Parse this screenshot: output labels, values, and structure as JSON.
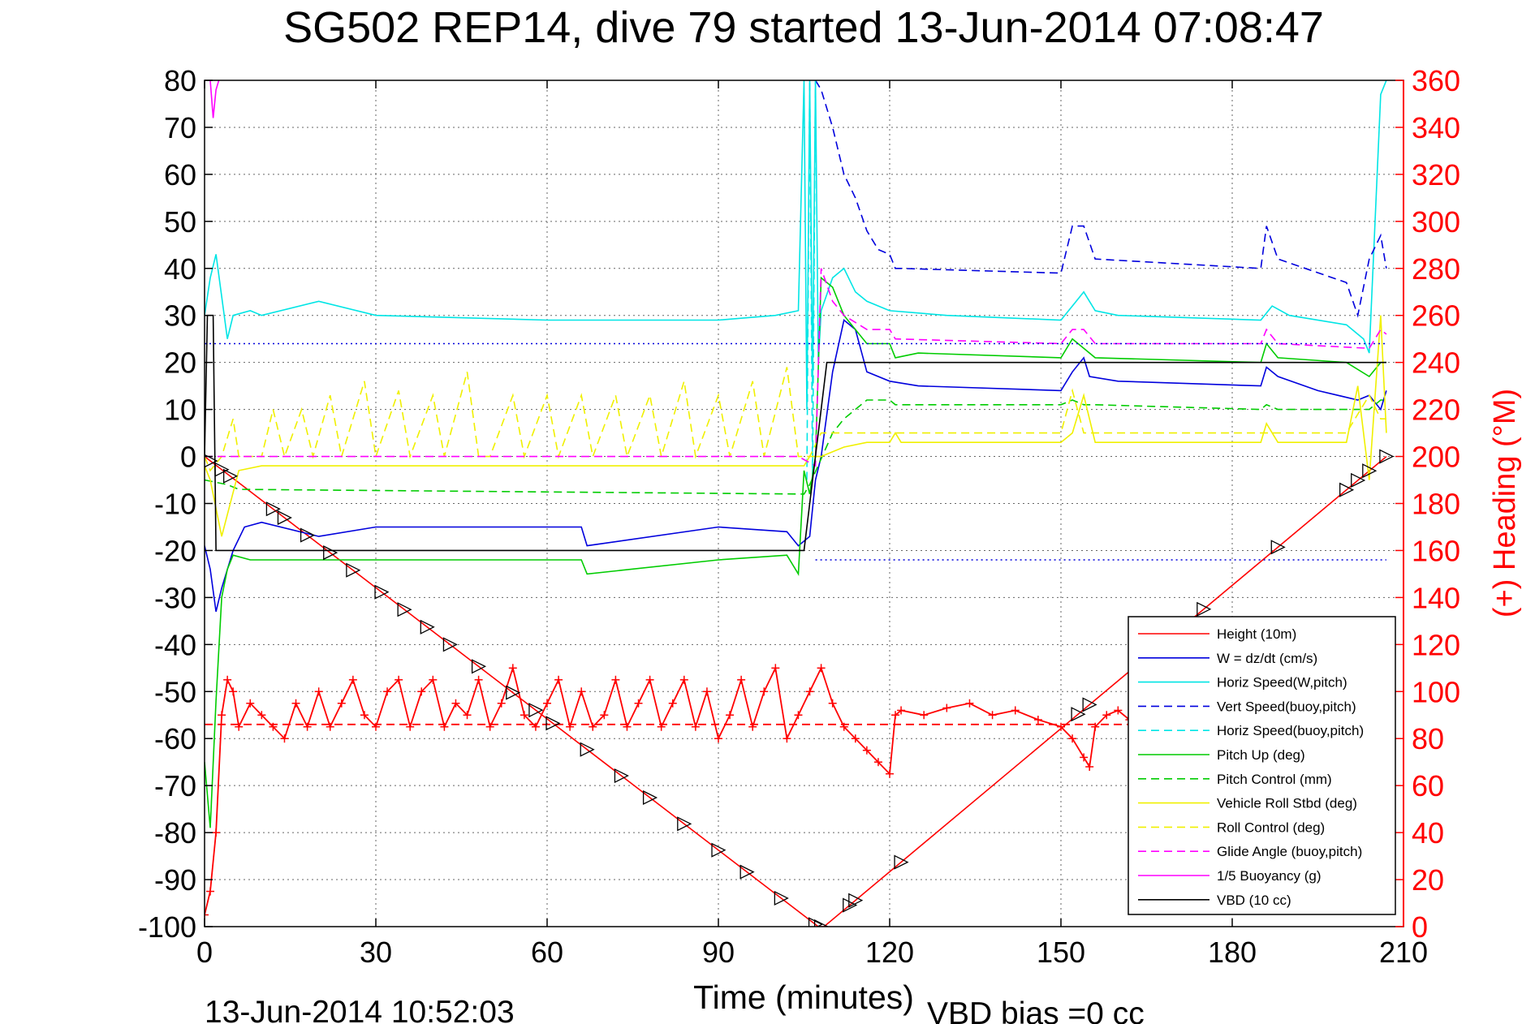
{
  "chart_data": {
    "type": "line",
    "title": "SG502 REP14, dive 79 started 13-Jun-2014 07:08:47",
    "xlabel": "Time (minutes)",
    "ylabel_right": "(+) Heading (°M)",
    "footer_left": "13-Jun-2014 10:52:03",
    "footer_right": "VBD bias =0 cc",
    "xlim": [
      0,
      210
    ],
    "ylim": [
      -100,
      80
    ],
    "ylim_right": [
      0,
      360
    ],
    "x_ticks": [
      "0",
      "30",
      "60",
      "90",
      "120",
      "150",
      "180",
      "210"
    ],
    "y_ticks": [
      "80",
      "70",
      "60",
      "50",
      "40",
      "30",
      "20",
      "10",
      "0",
      "-10",
      "-20",
      "-30",
      "-40",
      "-50",
      "-60",
      "-70",
      "-80",
      "-90",
      "-100"
    ],
    "y_ticks_right": [
      "360",
      "340",
      "320",
      "300",
      "280",
      "260",
      "240",
      "220",
      "200",
      "180",
      "160",
      "140",
      "120",
      "100",
      "80",
      "60",
      "40",
      "20",
      "0"
    ],
    "grid": true,
    "legend_position": "bottom-right",
    "colors": {
      "red": "#ff0000",
      "blue": "#0000dd",
      "cyan": "#00e5e5",
      "green": "#00cc00",
      "yellow": "#f0f000",
      "magenta": "#ff00ff",
      "black": "#000000"
    },
    "series": [
      {
        "name": "Height (10m)",
        "color": "#ff0000",
        "dash": "solid",
        "axis": "left",
        "x": [
          0,
          107.5,
          108.5,
          207
        ],
        "y": [
          0,
          -100,
          -100,
          0
        ]
      },
      {
        "name": "W = dz/dt (cm/s)",
        "color": "#0000dd",
        "dash": "solid",
        "axis": "left",
        "x": [
          0,
          1,
          2,
          3,
          5,
          7,
          10,
          20,
          30,
          60,
          66,
          67,
          90,
          102,
          104,
          106,
          107,
          108,
          110,
          112,
          114,
          116,
          120,
          125,
          150,
          152,
          154,
          155,
          160,
          185,
          186,
          188,
          195,
          202,
          204,
          206,
          207
        ],
        "y": [
          -19,
          -24,
          -33,
          -28,
          -20,
          -15,
          -14,
          -17,
          -15,
          -15,
          -15,
          -19,
          -15,
          -16,
          -19,
          -17,
          -5,
          0,
          18,
          29,
          27,
          18,
          16,
          15,
          14,
          18,
          21,
          17,
          16,
          15,
          19,
          17,
          14,
          12,
          13,
          10,
          14
        ]
      },
      {
        "name": "Horiz Speed(W,pitch)",
        "color": "#00e5e5",
        "dash": "solid",
        "axis": "left",
        "x": [
          0,
          1,
          2,
          3,
          4,
          5,
          8,
          10,
          20,
          30,
          60,
          90,
          100,
          104,
          105,
          105.5,
          106,
          106.5,
          107,
          107.5,
          108,
          110,
          112,
          114,
          116,
          120,
          130,
          150,
          152,
          154,
          156,
          160,
          185,
          187,
          190,
          200,
          203,
          204,
          206,
          207
        ],
        "y": [
          30,
          38,
          43,
          34,
          25,
          30,
          31,
          30,
          33,
          30,
          29,
          29,
          30,
          31,
          80,
          10,
          80,
          15,
          80,
          20,
          31,
          38,
          40,
          35,
          33,
          31,
          30,
          29,
          32,
          35,
          31,
          30,
          29,
          32,
          30,
          28,
          25,
          22,
          77,
          80
        ]
      },
      {
        "name": "Vert Speed(buoy,pitch)",
        "color": "#0000dd",
        "dash": "dashed",
        "axis": "left",
        "x": [
          107,
          108,
          110,
          112,
          114,
          116,
          118,
          120,
          121,
          122,
          150,
          152,
          154,
          156,
          185,
          186,
          188,
          200,
          202,
          204,
          206,
          207
        ],
        "y": [
          80,
          78,
          70,
          60,
          55,
          48,
          44,
          43,
          40,
          40,
          39,
          49,
          49,
          42,
          40,
          49,
          42,
          37,
          30,
          42,
          47,
          40
        ]
      },
      {
        "name": "Horiz Speed(buoy,pitch)",
        "color": "#00e5e5",
        "dash": "dashed",
        "axis": "left",
        "x": [
          105.5,
          106,
          106.5,
          107
        ],
        "y": [
          -5,
          80,
          -5,
          80
        ]
      },
      {
        "name": "Pitch Up (deg)",
        "color": "#00cc00",
        "dash": "solid",
        "axis": "left",
        "x": [
          0,
          1,
          2,
          3,
          4,
          5,
          8,
          10,
          20,
          30,
          60,
          66,
          67,
          90,
          102,
          104,
          105,
          106,
          107,
          108,
          110,
          112,
          116,
          120,
          121,
          125,
          150,
          152,
          154,
          156,
          185,
          186,
          188,
          200,
          204,
          206,
          207
        ],
        "y": [
          -65,
          -79,
          -52,
          -30,
          -24,
          -21,
          -22,
          -22,
          -22,
          -22,
          -22,
          -22,
          -25,
          -22,
          -21,
          -25,
          -3,
          -8,
          0,
          38,
          36,
          30,
          24,
          24,
          21,
          22,
          21,
          25,
          23,
          21,
          20,
          24,
          21,
          20,
          17,
          20,
          20
        ]
      },
      {
        "name": "Pitch Control (mm)",
        "color": "#00cc00",
        "dash": "dashed",
        "axis": "left",
        "x": [
          0,
          4,
          6,
          105,
          106,
          110,
          112,
          116,
          120,
          121,
          150,
          152,
          154,
          156,
          185,
          186,
          188,
          204,
          206,
          207
        ],
        "y": [
          -5,
          -6,
          -7,
          -8,
          -6,
          5,
          8,
          12,
          12,
          11,
          11,
          12,
          11,
          11,
          10,
          11,
          10,
          10,
          12,
          12
        ]
      },
      {
        "name": "Vehicle Roll Stbd (deg)",
        "color": "#f0f000",
        "dash": "solid",
        "axis": "left",
        "x": [
          0,
          1,
          3,
          6,
          10,
          30,
          60,
          90,
          105,
          106,
          108,
          112,
          116,
          120,
          121,
          122,
          150,
          152,
          154,
          156,
          160,
          185,
          186,
          188,
          200,
          202,
          204,
          206,
          207
        ],
        "y": [
          -2,
          -5,
          -17,
          -3,
          -2,
          -2,
          -2,
          -2,
          -2,
          0,
          0,
          2,
          3,
          3,
          5,
          3,
          3,
          5,
          13,
          3,
          3,
          3,
          7,
          3,
          3,
          15,
          -5,
          30,
          5
        ]
      },
      {
        "name": "Roll Control (deg)",
        "color": "#f0f000",
        "dash": "dashed",
        "axis": "left",
        "x": [
          0,
          1,
          3,
          5,
          6,
          8,
          10,
          12,
          14,
          17,
          19,
          22,
          24,
          28,
          30,
          34,
          36,
          40,
          42,
          46,
          48,
          50,
          54,
          56,
          60,
          62,
          66,
          68,
          72,
          74,
          78,
          80,
          84,
          86,
          90,
          92,
          96,
          98,
          102,
          104,
          106,
          108,
          120,
          150,
          152,
          154,
          156,
          185,
          200,
          204,
          206,
          207
        ],
        "y": [
          0,
          -3,
          0,
          8,
          0,
          0,
          0,
          10,
          0,
          10,
          0,
          13,
          0,
          16,
          0,
          14,
          0,
          13,
          0,
          18,
          0,
          0,
          13,
          0,
          13,
          0,
          13,
          0,
          13,
          0,
          13,
          0,
          16,
          0,
          13,
          0,
          16,
          0,
          19,
          0,
          0,
          5,
          5,
          5,
          14,
          5,
          5,
          5,
          5,
          13,
          8,
          8
        ]
      },
      {
        "name": "Glide Angle (buoy,pitch)",
        "color": "#ff00ff",
        "dash": "dashed",
        "axis": "left",
        "x": [
          0,
          104,
          107,
          108,
          110,
          112,
          116,
          120,
          121,
          150,
          152,
          154,
          156,
          185,
          186,
          188,
          204,
          206,
          207
        ],
        "y": [
          0,
          0,
          -2,
          40,
          33,
          30,
          27,
          27,
          25,
          24,
          27,
          27,
          24,
          24,
          27,
          24,
          23,
          27,
          26
        ]
      },
      {
        "name": "1/5 Buoyancy (g)",
        "color": "#ff00ff",
        "dash": "solid",
        "axis": "left",
        "x": [
          1,
          1.5,
          2,
          2.5
        ],
        "y": [
          80,
          72,
          78,
          80
        ]
      },
      {
        "name": "VBD (10 cc)",
        "color": "#000000",
        "dash": "solid",
        "axis": "left",
        "x": [
          0,
          0.5,
          1.5,
          2,
          105,
          109,
          110,
          207
        ],
        "y": [
          0,
          30,
          30,
          -20,
          -20,
          20,
          20,
          20
        ]
      },
      {
        "name": "",
        "color": "#ff0000",
        "dash": "solid",
        "axis": "right",
        "marker": "+",
        "x": [
          0,
          1,
          2,
          3,
          4,
          5,
          6,
          8,
          10,
          12,
          14,
          16,
          18,
          20,
          22,
          24,
          26,
          28,
          30,
          32,
          34,
          36,
          38,
          40,
          42,
          44,
          46,
          48,
          50,
          52,
          54,
          56,
          58,
          60,
          62,
          64,
          66,
          68,
          70,
          72,
          74,
          76,
          78,
          80,
          82,
          84,
          86,
          88,
          90,
          92,
          94,
          96,
          98,
          100,
          102,
          104,
          106,
          108,
          110,
          112,
          114,
          116,
          118,
          120,
          121,
          122,
          126,
          130,
          134,
          138,
          142,
          146,
          150,
          152,
          154,
          155,
          156,
          158,
          160,
          162
        ],
        "y": [
          5,
          15,
          40,
          90,
          105,
          100,
          85,
          95,
          90,
          85,
          80,
          95,
          85,
          100,
          85,
          95,
          105,
          90,
          85,
          100,
          105,
          85,
          100,
          105,
          85,
          95,
          90,
          105,
          85,
          95,
          110,
          90,
          85,
          95,
          105,
          85,
          100,
          85,
          90,
          105,
          85,
          95,
          105,
          85,
          95,
          105,
          85,
          100,
          80,
          90,
          105,
          85,
          100,
          110,
          80,
          90,
          100,
          110,
          95,
          85,
          80,
          75,
          70,
          65,
          90,
          92,
          90,
          93,
          95,
          90,
          92,
          88,
          85,
          80,
          72,
          68,
          85,
          90,
          92,
          88
        ]
      },
      {
        "name": "",
        "color": "#ff0000",
        "dash": "dashed",
        "axis": "right",
        "x": [
          0,
          207
        ],
        "y": [
          86,
          86
        ]
      },
      {
        "name": "",
        "color": "#0000dd",
        "dash": "dotted",
        "axis": "left",
        "x": [
          107,
          207
        ],
        "y": [
          -22,
          -22
        ]
      },
      {
        "name": "",
        "color": "#0000dd",
        "dash": "dotted",
        "axis": "left",
        "x": [
          0,
          207
        ],
        "y": [
          24,
          24
        ]
      }
    ]
  }
}
